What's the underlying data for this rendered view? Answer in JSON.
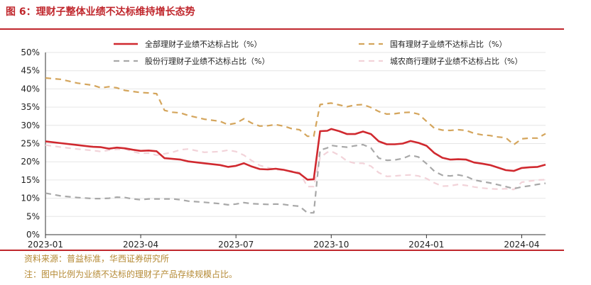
{
  "header": {
    "title": "图 6：理财子整体业绩不达标维持增长态势"
  },
  "footer": {
    "source": "资料来源：普益标准，华西证券研究所",
    "note": "注：图中比例为业绩不达标的理财子产品存续规模占比。"
  },
  "chart_data": {
    "type": "line",
    "title": "",
    "xlabel": "",
    "ylabel": "",
    "ylim": [
      0,
      50
    ],
    "yticks": [
      "0%",
      "5%",
      "10%",
      "15%",
      "20%",
      "25%",
      "30%",
      "35%",
      "40%",
      "45%",
      "50%"
    ],
    "xticks": [
      {
        "label": "2023-01",
        "t": 0
      },
      {
        "label": "2023-04",
        "t": 12
      },
      {
        "label": "2023-07",
        "t": 24
      },
      {
        "label": "2023-10",
        "t": 36
      },
      {
        "label": "2024-01",
        "t": 48
      },
      {
        "label": "2024-04",
        "t": 60
      }
    ],
    "x_unit": "weeks since 2023-01",
    "series": [
      {
        "name": "全部理财子业绩不达标占比（%）",
        "color": "#d0292f",
        "style": "solid",
        "points": [
          [
            0,
            25.6
          ],
          [
            2,
            25.1
          ],
          [
            4,
            24.6
          ],
          [
            6,
            24.1
          ],
          [
            7,
            24.0
          ],
          [
            8,
            23.6
          ],
          [
            9,
            23.9
          ],
          [
            10,
            23.7
          ],
          [
            11,
            23.3
          ],
          [
            12,
            23.0
          ],
          [
            13,
            23.1
          ],
          [
            14,
            22.9
          ],
          [
            15,
            21.0
          ],
          [
            16,
            20.8
          ],
          [
            17,
            20.6
          ],
          [
            18,
            20.1
          ],
          [
            20,
            19.6
          ],
          [
            22,
            19.1
          ],
          [
            23,
            18.6
          ],
          [
            24,
            18.9
          ],
          [
            25,
            19.6
          ],
          [
            26,
            18.7
          ],
          [
            27,
            18.0
          ],
          [
            28,
            17.9
          ],
          [
            29,
            18.1
          ],
          [
            30,
            17.8
          ],
          [
            31,
            17.3
          ],
          [
            32,
            16.8
          ],
          [
            33,
            15.1
          ],
          [
            33.8,
            15.2
          ],
          [
            34.6,
            28.4
          ],
          [
            35.5,
            28.5
          ],
          [
            36,
            29.0
          ],
          [
            37,
            28.4
          ],
          [
            38,
            27.6
          ],
          [
            39,
            27.6
          ],
          [
            40,
            28.3
          ],
          [
            41,
            27.6
          ],
          [
            42,
            25.6
          ],
          [
            43,
            24.8
          ],
          [
            44,
            24.8
          ],
          [
            45,
            25.0
          ],
          [
            46,
            25.7
          ],
          [
            47,
            25.2
          ],
          [
            48,
            24.4
          ],
          [
            49,
            22.4
          ],
          [
            50,
            21.1
          ],
          [
            51,
            20.6
          ],
          [
            52,
            20.7
          ],
          [
            53,
            20.6
          ],
          [
            54,
            19.8
          ],
          [
            55,
            19.5
          ],
          [
            56,
            19.1
          ],
          [
            57,
            18.4
          ],
          [
            58,
            17.7
          ],
          [
            59,
            17.5
          ],
          [
            60,
            18.3
          ],
          [
            61,
            18.5
          ],
          [
            62,
            18.6
          ],
          [
            63,
            19.2
          ]
        ]
      },
      {
        "name": "国有理财子业绩不达标占比（%）",
        "color": "#d4a55c",
        "style": "dashed",
        "points": [
          [
            0,
            43.0
          ],
          [
            2,
            42.6
          ],
          [
            4,
            41.6
          ],
          [
            6,
            41.0
          ],
          [
            7,
            40.3
          ],
          [
            8,
            40.6
          ],
          [
            9,
            40.3
          ],
          [
            10,
            39.6
          ],
          [
            11,
            39.3
          ],
          [
            12,
            39.0
          ],
          [
            13,
            38.9
          ],
          [
            14,
            38.7
          ],
          [
            15,
            34.1
          ],
          [
            16,
            33.6
          ],
          [
            17,
            33.4
          ],
          [
            18,
            32.7
          ],
          [
            20,
            31.7
          ],
          [
            22,
            31.1
          ],
          [
            23,
            30.2
          ],
          [
            24,
            30.6
          ],
          [
            25,
            31.8
          ],
          [
            26,
            30.6
          ],
          [
            27,
            29.8
          ],
          [
            28,
            29.9
          ],
          [
            29,
            30.2
          ],
          [
            30,
            29.8
          ],
          [
            31,
            29.1
          ],
          [
            32,
            28.8
          ],
          [
            33,
            27.0
          ],
          [
            33.8,
            27.0
          ],
          [
            34.6,
            35.7
          ],
          [
            35.5,
            36.0
          ],
          [
            36,
            36.1
          ],
          [
            37,
            35.6
          ],
          [
            38,
            35.1
          ],
          [
            39,
            35.6
          ],
          [
            40,
            35.7
          ],
          [
            41,
            34.9
          ],
          [
            42,
            33.8
          ],
          [
            43,
            33.1
          ],
          [
            44,
            33.2
          ],
          [
            45,
            33.5
          ],
          [
            46,
            33.6
          ],
          [
            47,
            33.1
          ],
          [
            48,
            31.1
          ],
          [
            49,
            29.2
          ],
          [
            50,
            28.7
          ],
          [
            51,
            28.6
          ],
          [
            52,
            28.8
          ],
          [
            53,
            28.6
          ],
          [
            54,
            27.8
          ],
          [
            55,
            27.4
          ],
          [
            56,
            27.2
          ],
          [
            57,
            26.8
          ],
          [
            58,
            26.6
          ],
          [
            59,
            24.7
          ],
          [
            60,
            26.3
          ],
          [
            61,
            26.5
          ],
          [
            62,
            26.5
          ],
          [
            63,
            27.7
          ]
        ]
      },
      {
        "name": "股份行理财子业绩不达标占比（%）",
        "color": "#a8a8a8",
        "style": "dashed",
        "points": [
          [
            0,
            11.4
          ],
          [
            2,
            10.6
          ],
          [
            4,
            10.2
          ],
          [
            6,
            9.9
          ],
          [
            7,
            9.9
          ],
          [
            8,
            10.0
          ],
          [
            9,
            10.3
          ],
          [
            10,
            10.2
          ],
          [
            11,
            9.8
          ],
          [
            12,
            9.6
          ],
          [
            13,
            9.8
          ],
          [
            14,
            9.8
          ],
          [
            15,
            9.8
          ],
          [
            16,
            9.8
          ],
          [
            17,
            9.6
          ],
          [
            18,
            9.2
          ],
          [
            20,
            8.9
          ],
          [
            22,
            8.5
          ],
          [
            23,
            8.2
          ],
          [
            24,
            8.4
          ],
          [
            25,
            8.8
          ],
          [
            26,
            8.5
          ],
          [
            27,
            8.4
          ],
          [
            28,
            8.3
          ],
          [
            29,
            8.4
          ],
          [
            30,
            8.3
          ],
          [
            31,
            8.0
          ],
          [
            32,
            7.8
          ],
          [
            33,
            6.0
          ],
          [
            33.8,
            6.0
          ],
          [
            34.6,
            23.2
          ],
          [
            35.5,
            23.8
          ],
          [
            36,
            24.5
          ],
          [
            37,
            24.2
          ],
          [
            38,
            24.0
          ],
          [
            39,
            24.4
          ],
          [
            40,
            24.7
          ],
          [
            41,
            23.8
          ],
          [
            42,
            21.0
          ],
          [
            43,
            20.4
          ],
          [
            44,
            20.5
          ],
          [
            45,
            20.9
          ],
          [
            46,
            21.8
          ],
          [
            47,
            21.3
          ],
          [
            48,
            19.5
          ],
          [
            49,
            17.4
          ],
          [
            50,
            16.3
          ],
          [
            51,
            16.1
          ],
          [
            52,
            16.4
          ],
          [
            53,
            16.0
          ],
          [
            54,
            15.0
          ],
          [
            55,
            14.6
          ],
          [
            56,
            14.2
          ],
          [
            57,
            13.7
          ],
          [
            58,
            13.2
          ],
          [
            59,
            12.6
          ],
          [
            60,
            13.1
          ],
          [
            61,
            13.4
          ],
          [
            62,
            13.8
          ],
          [
            63,
            14.1
          ]
        ]
      },
      {
        "name": "城农商行理财子业绩不达标占比（%）",
        "color": "#f2d3d9",
        "style": "dashed",
        "points": [
          [
            0,
            24.6
          ],
          [
            2,
            24.0
          ],
          [
            4,
            23.5
          ],
          [
            6,
            23.1
          ],
          [
            7,
            22.8
          ],
          [
            8,
            23.2
          ],
          [
            9,
            23.4
          ],
          [
            10,
            23.5
          ],
          [
            11,
            22.8
          ],
          [
            12,
            22.3
          ],
          [
            13,
            22.4
          ],
          [
            14,
            21.8
          ],
          [
            15,
            22.2
          ],
          [
            16,
            22.6
          ],
          [
            17,
            23.3
          ],
          [
            18,
            23.5
          ],
          [
            20,
            22.6
          ],
          [
            22,
            22.8
          ],
          [
            23,
            23.2
          ],
          [
            24,
            22.8
          ],
          [
            25,
            21.8
          ],
          [
            26,
            20.3
          ],
          [
            27,
            19.0
          ],
          [
            28,
            18.4
          ],
          [
            29,
            17.9
          ],
          [
            30,
            17.6
          ],
          [
            31,
            17.5
          ],
          [
            32,
            17.1
          ],
          [
            33,
            13.2
          ],
          [
            33.8,
            13.2
          ],
          [
            34.6,
            21.2
          ],
          [
            35.5,
            22.6
          ],
          [
            36,
            22.9
          ],
          [
            37,
            21.8
          ],
          [
            38,
            20.2
          ],
          [
            39,
            19.6
          ],
          [
            40,
            19.6
          ],
          [
            41,
            18.8
          ],
          [
            42,
            17.0
          ],
          [
            43,
            16.0
          ],
          [
            44,
            16.1
          ],
          [
            45,
            16.3
          ],
          [
            46,
            16.4
          ],
          [
            47,
            16.1
          ],
          [
            48,
            15.4
          ],
          [
            49,
            14.2
          ],
          [
            50,
            13.3
          ],
          [
            51,
            13.4
          ],
          [
            52,
            13.8
          ],
          [
            53,
            13.5
          ],
          [
            54,
            13.1
          ],
          [
            55,
            12.8
          ],
          [
            56,
            12.6
          ],
          [
            57,
            12.5
          ],
          [
            58,
            12.6
          ],
          [
            59,
            12.4
          ],
          [
            60,
            14.4
          ],
          [
            61,
            14.7
          ],
          [
            62,
            15.0
          ],
          [
            63,
            15.1
          ]
        ]
      }
    ],
    "legend": "top, two columns"
  }
}
